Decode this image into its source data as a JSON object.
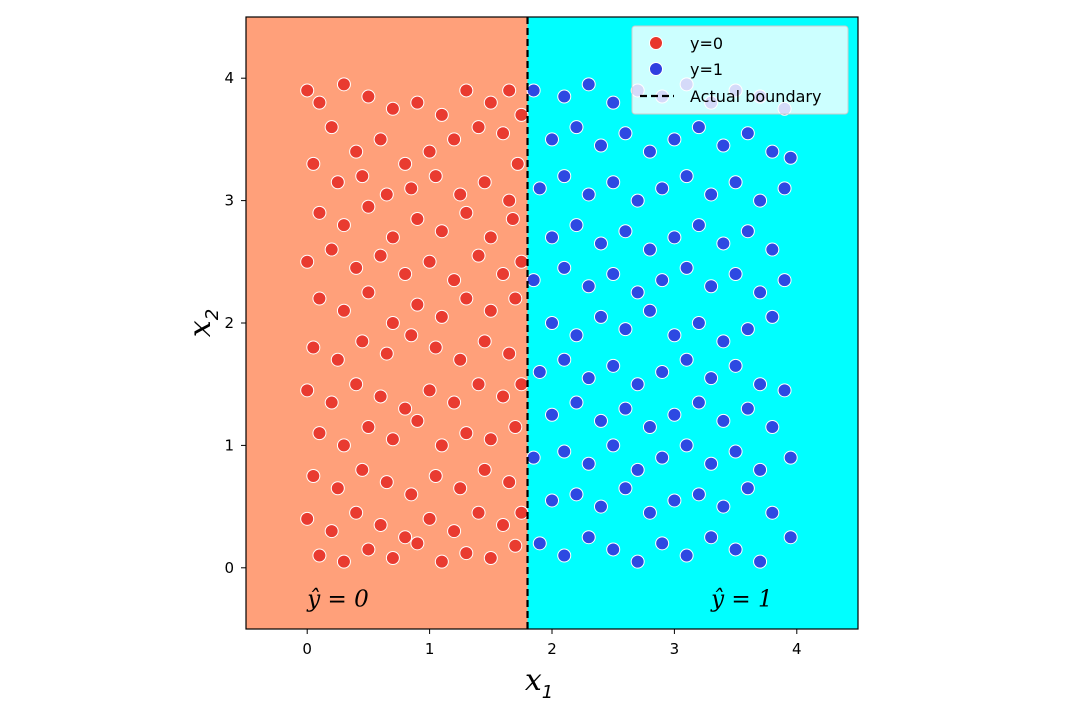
{
  "chart_data": {
    "type": "scatter",
    "xlim": [
      -0.5,
      4.5
    ],
    "ylim": [
      -0.5,
      4.5
    ],
    "xticks": [
      0,
      1,
      2,
      3,
      4
    ],
    "yticks": [
      0,
      1,
      2,
      3,
      4
    ],
    "xlabel": "x",
    "xlabel_sub": "1",
    "ylabel": "x",
    "ylabel_sub": "2",
    "boundary": {
      "x": 1.8,
      "label": "Actual boundary",
      "style": "dashed",
      "color": "#000000"
    },
    "regions": [
      {
        "label": "ŷ = 0",
        "x_from": -0.5,
        "x_to": 1.8,
        "color": "#FFA07A",
        "label_at": [
          0.0,
          -0.25
        ]
      },
      {
        "label": "ŷ = 1",
        "x_from": 1.8,
        "x_to": 4.5,
        "color": "#00FFFF",
        "label_at": [
          3.3,
          -0.25
        ]
      }
    ],
    "legend_position": "top-right",
    "series": [
      {
        "name": "y=0",
        "color": "#E8362C",
        "points": [
          [
            0.0,
            3.9
          ],
          [
            0.1,
            3.8
          ],
          [
            0.3,
            3.95
          ],
          [
            0.5,
            3.85
          ],
          [
            0.7,
            3.75
          ],
          [
            0.9,
            3.8
          ],
          [
            1.1,
            3.7
          ],
          [
            1.3,
            3.9
          ],
          [
            1.5,
            3.8
          ],
          [
            1.65,
            3.9
          ],
          [
            0.2,
            3.6
          ],
          [
            0.4,
            3.4
          ],
          [
            0.6,
            3.5
          ],
          [
            0.8,
            3.3
          ],
          [
            1.0,
            3.4
          ],
          [
            1.2,
            3.5
          ],
          [
            1.4,
            3.6
          ],
          [
            1.6,
            3.55
          ],
          [
            1.75,
            3.7
          ],
          [
            0.05,
            3.3
          ],
          [
            0.25,
            3.15
          ],
          [
            0.45,
            3.2
          ],
          [
            0.65,
            3.05
          ],
          [
            0.85,
            3.1
          ],
          [
            1.05,
            3.2
          ],
          [
            1.25,
            3.05
          ],
          [
            1.45,
            3.15
          ],
          [
            1.65,
            3.0
          ],
          [
            1.72,
            3.3
          ],
          [
            0.1,
            2.9
          ],
          [
            0.3,
            2.8
          ],
          [
            0.5,
            2.95
          ],
          [
            0.7,
            2.7
          ],
          [
            0.9,
            2.85
          ],
          [
            1.1,
            2.75
          ],
          [
            1.3,
            2.9
          ],
          [
            1.5,
            2.7
          ],
          [
            1.68,
            2.85
          ],
          [
            0.0,
            2.5
          ],
          [
            0.2,
            2.6
          ],
          [
            0.4,
            2.45
          ],
          [
            0.6,
            2.55
          ],
          [
            0.8,
            2.4
          ],
          [
            1.0,
            2.5
          ],
          [
            1.2,
            2.35
          ],
          [
            1.4,
            2.55
          ],
          [
            1.6,
            2.4
          ],
          [
            1.75,
            2.5
          ],
          [
            0.1,
            2.2
          ],
          [
            0.3,
            2.1
          ],
          [
            0.5,
            2.25
          ],
          [
            0.7,
            2.0
          ],
          [
            0.9,
            2.15
          ],
          [
            1.1,
            2.05
          ],
          [
            1.3,
            2.2
          ],
          [
            1.5,
            2.1
          ],
          [
            1.7,
            2.2
          ],
          [
            0.05,
            1.8
          ],
          [
            0.25,
            1.7
          ],
          [
            0.45,
            1.85
          ],
          [
            0.65,
            1.75
          ],
          [
            0.85,
            1.9
          ],
          [
            1.05,
            1.8
          ],
          [
            1.25,
            1.7
          ],
          [
            1.45,
            1.85
          ],
          [
            1.65,
            1.75
          ],
          [
            0.0,
            1.45
          ],
          [
            0.2,
            1.35
          ],
          [
            0.4,
            1.5
          ],
          [
            0.6,
            1.4
          ],
          [
            0.8,
            1.3
          ],
          [
            1.0,
            1.45
          ],
          [
            1.2,
            1.35
          ],
          [
            1.4,
            1.5
          ],
          [
            1.6,
            1.4
          ],
          [
            1.75,
            1.5
          ],
          [
            0.1,
            1.1
          ],
          [
            0.3,
            1.0
          ],
          [
            0.5,
            1.15
          ],
          [
            0.7,
            1.05
          ],
          [
            0.9,
            1.2
          ],
          [
            1.1,
            1.0
          ],
          [
            1.3,
            1.1
          ],
          [
            1.5,
            1.05
          ],
          [
            1.7,
            1.15
          ],
          [
            0.05,
            0.75
          ],
          [
            0.25,
            0.65
          ],
          [
            0.45,
            0.8
          ],
          [
            0.65,
            0.7
          ],
          [
            0.85,
            0.6
          ],
          [
            1.05,
            0.75
          ],
          [
            1.25,
            0.65
          ],
          [
            1.45,
            0.8
          ],
          [
            1.65,
            0.7
          ],
          [
            0.0,
            0.4
          ],
          [
            0.2,
            0.3
          ],
          [
            0.4,
            0.45
          ],
          [
            0.6,
            0.35
          ],
          [
            0.8,
            0.25
          ],
          [
            1.0,
            0.4
          ],
          [
            1.2,
            0.3
          ],
          [
            1.4,
            0.45
          ],
          [
            1.6,
            0.35
          ],
          [
            1.75,
            0.45
          ],
          [
            0.1,
            0.1
          ],
          [
            0.3,
            0.05
          ],
          [
            0.5,
            0.15
          ],
          [
            0.7,
            0.08
          ],
          [
            0.9,
            0.2
          ],
          [
            1.1,
            0.05
          ],
          [
            1.3,
            0.12
          ],
          [
            1.5,
            0.08
          ],
          [
            1.7,
            0.18
          ]
        ]
      },
      {
        "name": "y=1",
        "color": "#2F3FE0",
        "points": [
          [
            1.85,
            3.9
          ],
          [
            2.1,
            3.85
          ],
          [
            2.3,
            3.95
          ],
          [
            2.5,
            3.8
          ],
          [
            2.7,
            3.9
          ],
          [
            2.9,
            3.85
          ],
          [
            3.1,
            3.95
          ],
          [
            3.3,
            3.8
          ],
          [
            3.5,
            3.9
          ],
          [
            3.7,
            3.85
          ],
          [
            3.9,
            3.75
          ],
          [
            2.0,
            3.5
          ],
          [
            2.2,
            3.6
          ],
          [
            2.4,
            3.45
          ],
          [
            2.6,
            3.55
          ],
          [
            2.8,
            3.4
          ],
          [
            3.0,
            3.5
          ],
          [
            3.2,
            3.6
          ],
          [
            3.4,
            3.45
          ],
          [
            3.6,
            3.55
          ],
          [
            3.8,
            3.4
          ],
          [
            3.95,
            3.35
          ],
          [
            1.9,
            3.1
          ],
          [
            2.1,
            3.2
          ],
          [
            2.3,
            3.05
          ],
          [
            2.5,
            3.15
          ],
          [
            2.7,
            3.0
          ],
          [
            2.9,
            3.1
          ],
          [
            3.1,
            3.2
          ],
          [
            3.3,
            3.05
          ],
          [
            3.5,
            3.15
          ],
          [
            3.7,
            3.0
          ],
          [
            3.9,
            3.1
          ],
          [
            2.0,
            2.7
          ],
          [
            2.2,
            2.8
          ],
          [
            2.4,
            2.65
          ],
          [
            2.6,
            2.75
          ],
          [
            2.8,
            2.6
          ],
          [
            3.0,
            2.7
          ],
          [
            3.2,
            2.8
          ],
          [
            3.4,
            2.65
          ],
          [
            3.6,
            2.75
          ],
          [
            3.8,
            2.6
          ],
          [
            1.85,
            2.35
          ],
          [
            2.1,
            2.45
          ],
          [
            2.3,
            2.3
          ],
          [
            2.5,
            2.4
          ],
          [
            2.7,
            2.25
          ],
          [
            2.9,
            2.35
          ],
          [
            3.1,
            2.45
          ],
          [
            3.3,
            2.3
          ],
          [
            3.5,
            2.4
          ],
          [
            3.7,
            2.25
          ],
          [
            3.9,
            2.35
          ],
          [
            2.0,
            2.0
          ],
          [
            2.2,
            1.9
          ],
          [
            2.4,
            2.05
          ],
          [
            2.6,
            1.95
          ],
          [
            2.8,
            2.1
          ],
          [
            3.0,
            1.9
          ],
          [
            3.2,
            2.0
          ],
          [
            3.4,
            1.85
          ],
          [
            3.6,
            1.95
          ],
          [
            3.8,
            2.05
          ],
          [
            1.9,
            1.6
          ],
          [
            2.1,
            1.7
          ],
          [
            2.3,
            1.55
          ],
          [
            2.5,
            1.65
          ],
          [
            2.7,
            1.5
          ],
          [
            2.9,
            1.6
          ],
          [
            3.1,
            1.7
          ],
          [
            3.3,
            1.55
          ],
          [
            3.5,
            1.65
          ],
          [
            3.7,
            1.5
          ],
          [
            3.9,
            1.45
          ],
          [
            2.0,
            1.25
          ],
          [
            2.2,
            1.35
          ],
          [
            2.4,
            1.2
          ],
          [
            2.6,
            1.3
          ],
          [
            2.8,
            1.15
          ],
          [
            3.0,
            1.25
          ],
          [
            3.2,
            1.35
          ],
          [
            3.4,
            1.2
          ],
          [
            3.6,
            1.3
          ],
          [
            3.8,
            1.15
          ],
          [
            1.85,
            0.9
          ],
          [
            2.1,
            0.95
          ],
          [
            2.3,
            0.85
          ],
          [
            2.5,
            1.0
          ],
          [
            2.7,
            0.8
          ],
          [
            2.9,
            0.9
          ],
          [
            3.1,
            1.0
          ],
          [
            3.3,
            0.85
          ],
          [
            3.5,
            0.95
          ],
          [
            3.7,
            0.8
          ],
          [
            3.95,
            0.9
          ],
          [
            2.0,
            0.55
          ],
          [
            2.2,
            0.6
          ],
          [
            2.4,
            0.5
          ],
          [
            2.6,
            0.65
          ],
          [
            2.8,
            0.45
          ],
          [
            3.0,
            0.55
          ],
          [
            3.2,
            0.6
          ],
          [
            3.4,
            0.5
          ],
          [
            3.6,
            0.65
          ],
          [
            3.8,
            0.45
          ],
          [
            1.9,
            0.2
          ],
          [
            2.1,
            0.1
          ],
          [
            2.3,
            0.25
          ],
          [
            2.5,
            0.15
          ],
          [
            2.7,
            0.05
          ],
          [
            2.9,
            0.2
          ],
          [
            3.1,
            0.1
          ],
          [
            3.3,
            0.25
          ],
          [
            3.5,
            0.15
          ],
          [
            3.7,
            0.05
          ],
          [
            3.95,
            0.25
          ]
        ]
      }
    ]
  }
}
